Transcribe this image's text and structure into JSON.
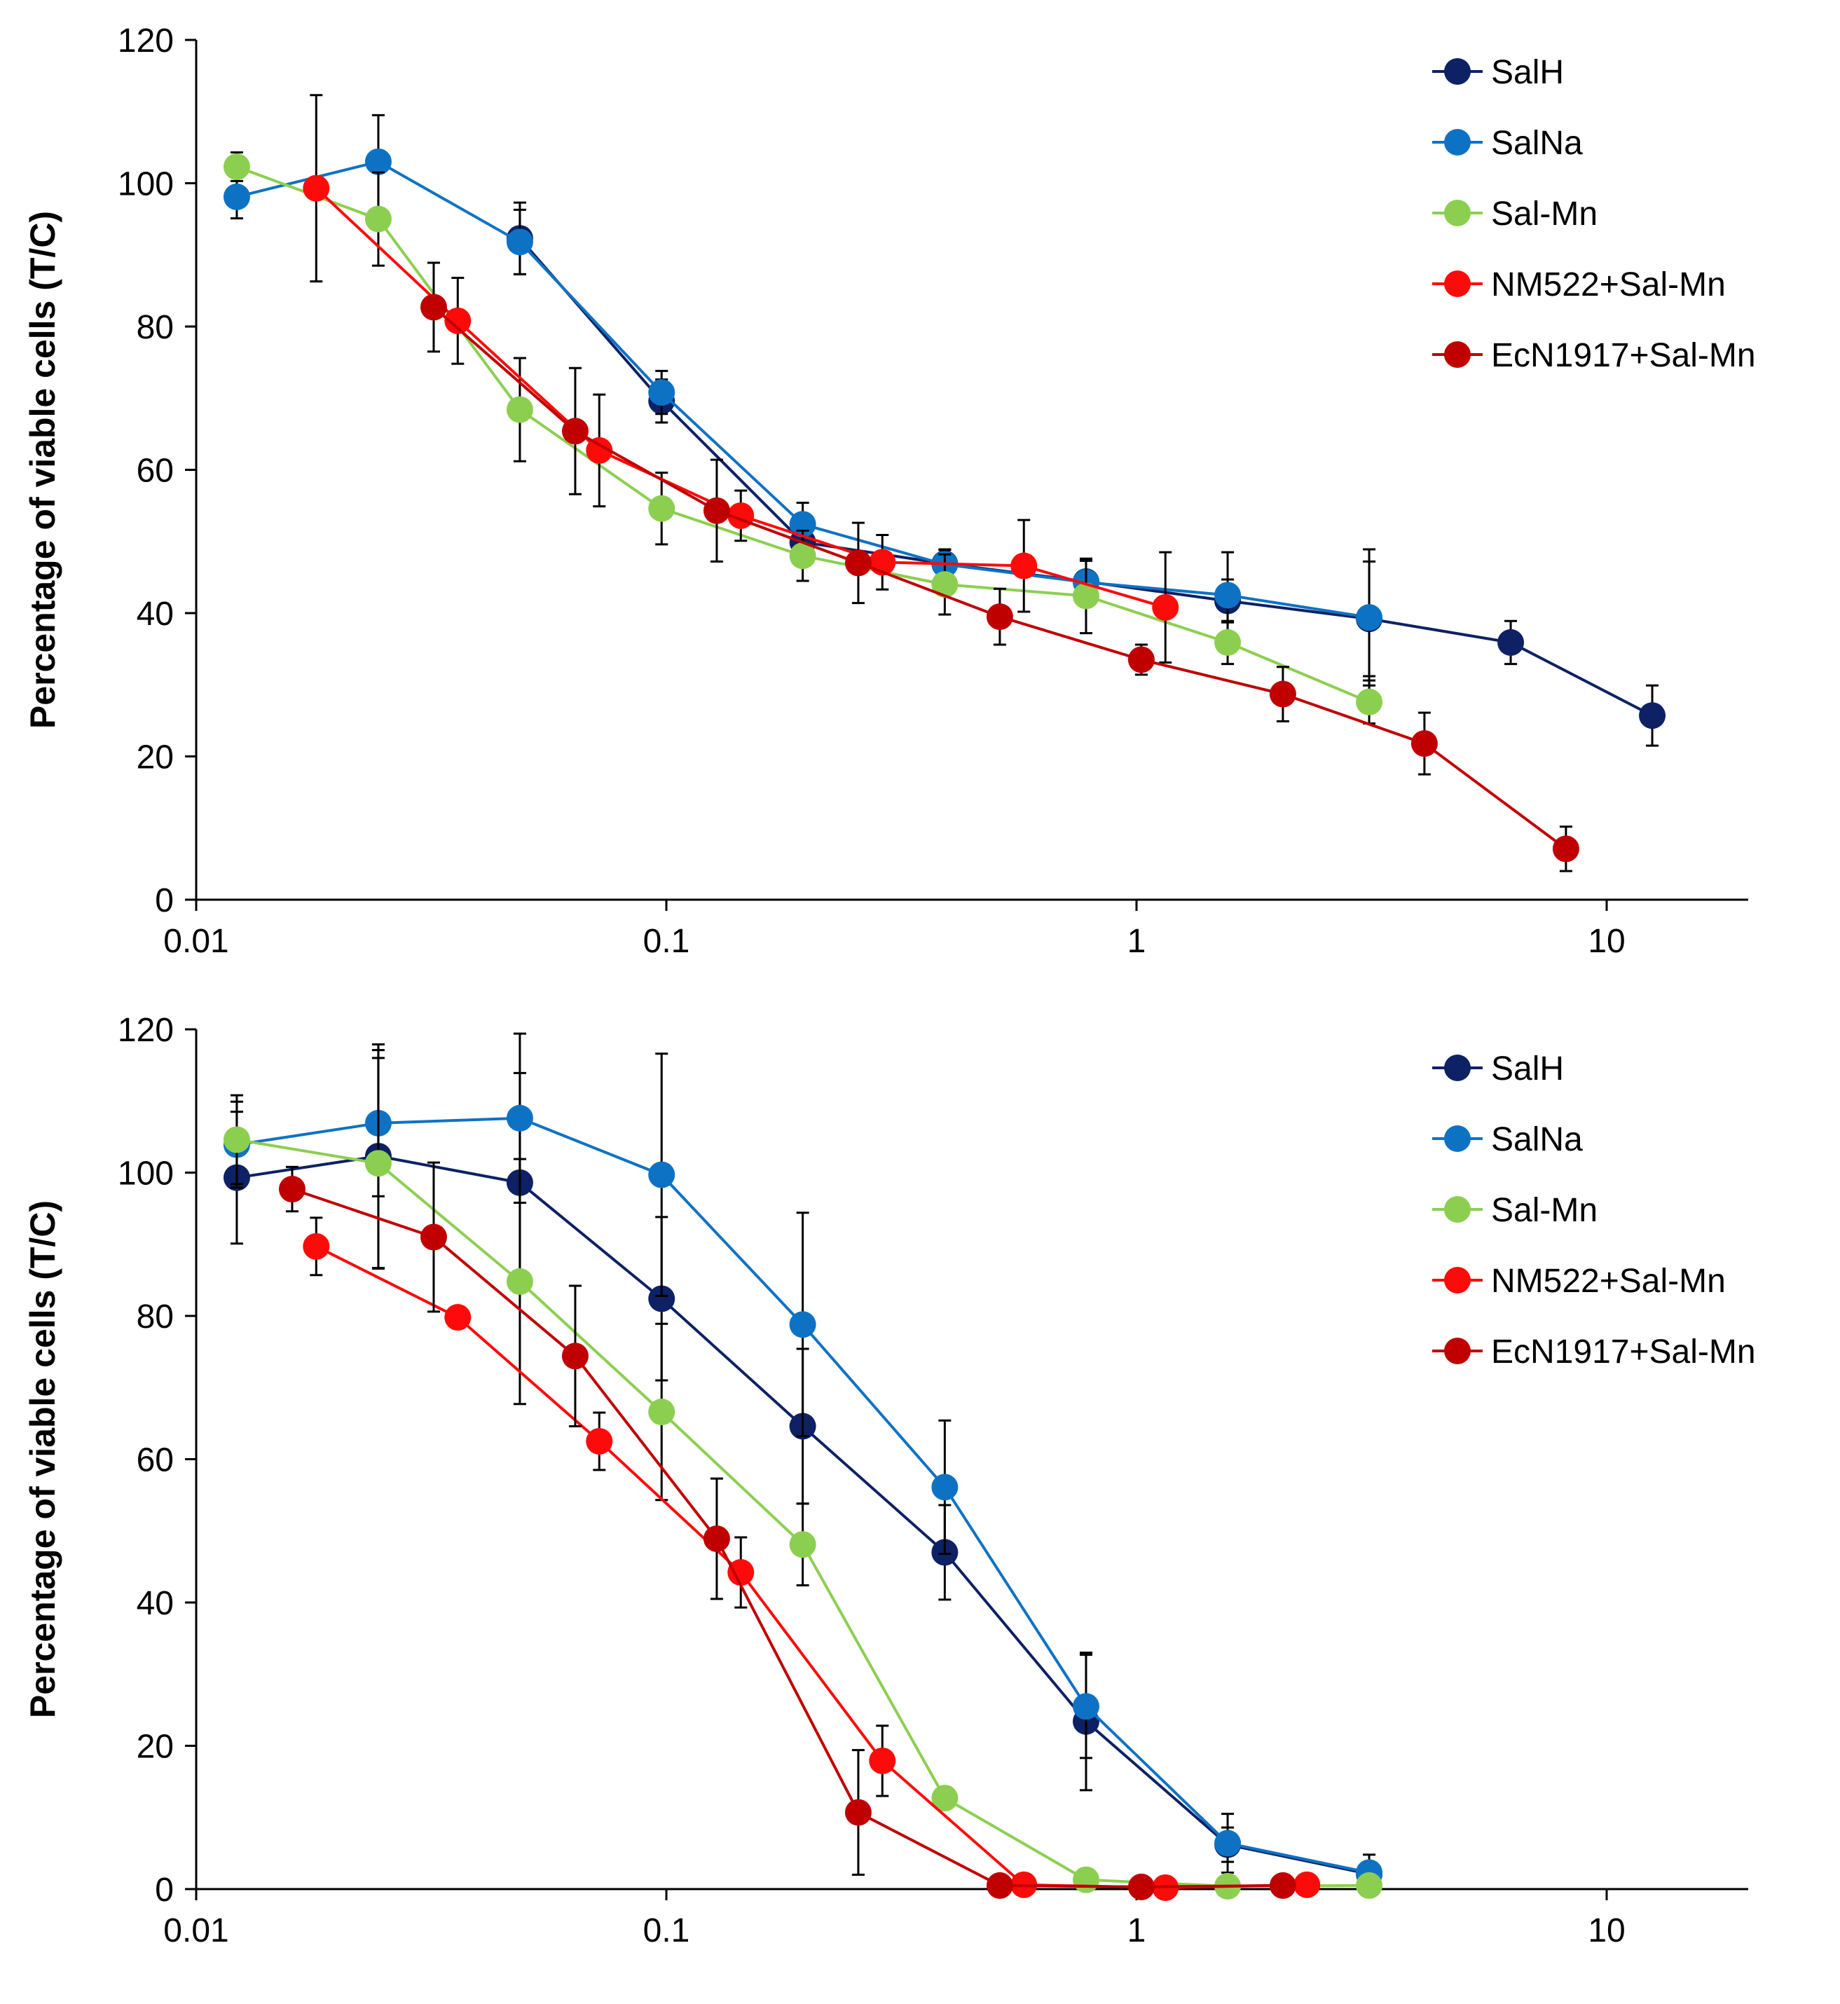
{
  "chart_data": [
    {
      "type": "scatter",
      "xscale": "log",
      "title": "",
      "xlabel": "",
      "ylabel": "Percentage of viable cells (T/C)",
      "xlim": [
        0.01,
        20
      ],
      "ylim": [
        0,
        120
      ],
      "xticks": [
        0.01,
        0.1,
        1,
        10
      ],
      "xtick_labels": [
        "0.01",
        "0.1",
        "1",
        "10"
      ],
      "yticks": [
        0,
        20,
        40,
        60,
        80,
        100,
        120
      ],
      "ytick_labels": [
        "0",
        "20",
        "40",
        "60",
        "80",
        "100",
        "120"
      ],
      "grid": false,
      "legend_position": "top-right",
      "series": [
        {
          "name": "SalH",
          "color": "#0d2164",
          "x": [
            0.0488,
            0.0977,
            0.195,
            0.391,
            0.781,
            1.5625,
            3.125,
            6.25,
            12.5
          ],
          "y": [
            92.3,
            69.6,
            49.9,
            46.9,
            44.4,
            41.7,
            39.2,
            35.9,
            25.7
          ],
          "err": [
            5.0,
            3.0,
            2.0,
            2.0,
            3.0,
            3.0,
            8.0,
            3.0,
            4.2
          ]
        },
        {
          "name": "SalNa",
          "color": "#0e72c4",
          "x": [
            0.0122,
            0.0244,
            0.0488,
            0.0977,
            0.195,
            0.391,
            0.781,
            1.5625,
            3.125
          ],
          "y": [
            98.1,
            103.0,
            91.8,
            70.8,
            52.4,
            46.8,
            44.3,
            42.5,
            39.4
          ],
          "err": [
            3.0,
            6.5,
            4.5,
            3.0,
            3.0,
            2.0,
            3.0,
            6.0,
            9.5
          ]
        },
        {
          "name": "Sal-Mn",
          "color": "#8ccf50",
          "x": [
            0.0122,
            0.0244,
            0.0488,
            0.0977,
            0.195,
            0.391,
            0.781,
            1.5625,
            3.125
          ],
          "y": [
            102.3,
            95.0,
            68.4,
            54.6,
            48.0,
            44.0,
            42.4,
            35.9,
            27.6
          ],
          "err": [
            2.0,
            6.5,
            7.2,
            5.0,
            3.5,
            4.2,
            5.2,
            3.0,
            3.0
          ]
        },
        {
          "name": "NM522+Sal-Mn",
          "color": "#ff0a0a",
          "x": [
            0.018,
            0.036,
            0.072,
            0.144,
            0.288,
            0.576,
            1.152
          ],
          "y": [
            99.3,
            80.8,
            62.7,
            53.6,
            47.1,
            46.6,
            40.8
          ],
          "err": [
            13.0,
            6.0,
            7.8,
            3.5,
            3.8,
            6.4,
            7.7
          ]
        },
        {
          "name": "EcN1917+Sal-Mn",
          "color": "#c00000",
          "x": [
            0.032,
            0.064,
            0.128,
            0.256,
            0.512,
            1.024,
            2.048,
            4.096,
            8.192
          ],
          "y": [
            82.7,
            65.4,
            54.3,
            47.0,
            39.5,
            33.5,
            28.7,
            21.8,
            7.1
          ],
          "err": [
            6.2,
            8.8,
            7.1,
            5.6,
            3.9,
            2.1,
            3.8,
            4.3,
            3.1
          ]
        }
      ]
    },
    {
      "type": "scatter",
      "xscale": "log",
      "title": "",
      "xlabel": "",
      "ylabel": "Percentage of viable cells (T/C)",
      "xlim": [
        0.01,
        20
      ],
      "ylim": [
        0,
        120
      ],
      "xticks": [
        0.01,
        0.1,
        1,
        10
      ],
      "xtick_labels": [
        "0.01",
        "0.1",
        "1",
        "10"
      ],
      "yticks": [
        0,
        20,
        40,
        60,
        80,
        100,
        120
      ],
      "ytick_labels": [
        "0",
        "20",
        "40",
        "60",
        "80",
        "100",
        "120"
      ],
      "grid": false,
      "legend_position": "top-right",
      "series": [
        {
          "name": "SalH",
          "color": "#0d2164",
          "x": [
            0.0122,
            0.0244,
            0.0488,
            0.0977,
            0.195,
            0.391,
            0.781,
            1.5625,
            3.125
          ],
          "y": [
            99.3,
            102.3,
            98.6,
            82.4,
            64.6,
            47.0,
            23.4,
            6.2,
            2.1
          ],
          "err": [
            9.2,
            15.6,
            15.3,
            11.4,
            10.8,
            6.6,
            9.6,
            2.4,
            1.1
          ]
        },
        {
          "name": "SalNa",
          "color": "#0e72c4",
          "x": [
            0.0122,
            0.0244,
            0.0488,
            0.0977,
            0.195,
            0.391,
            0.781,
            1.5625,
            3.125
          ],
          "y": [
            103.9,
            106.9,
            107.6,
            99.7,
            78.8,
            56.1,
            25.5,
            6.4,
            2.3
          ],
          "err": [
            6.0,
            10.2,
            11.8,
            16.9,
            15.6,
            9.3,
            7.2,
            4.1,
            2.5
          ]
        },
        {
          "name": "Sal-Mn",
          "color": "#8ccf50",
          "x": [
            0.0122,
            0.0244,
            0.0488,
            0.0977,
            0.195,
            0.391,
            0.781,
            1.5625,
            3.125
          ],
          "y": [
            104.6,
            101.3,
            84.8,
            66.6,
            48.1,
            12.7,
            1.3,
            0.4,
            0.5
          ],
          "err": [
            6.2,
            14.7,
            17.1,
            12.3,
            5.7,
            1.5,
            0.6,
            0.3,
            0.3
          ]
        },
        {
          "name": "NM522+Sal-Mn",
          "color": "#ff0a0a",
          "x": [
            0.018,
            0.036,
            0.072,
            0.144,
            0.288,
            0.576,
            1.152,
            2.304
          ],
          "y": [
            89.7,
            79.8,
            62.5,
            44.2,
            17.9,
            0.6,
            0.2,
            0.6
          ],
          "err": [
            4.0,
            1.5,
            4.0,
            4.9,
            4.9,
            0.4,
            0.2,
            0.3
          ]
        },
        {
          "name": "EcN1917+Sal-Mn",
          "color": "#c00000",
          "x": [
            0.016,
            0.032,
            0.064,
            0.128,
            0.256,
            0.512,
            1.024,
            2.048
          ],
          "y": [
            97.7,
            91.0,
            74.4,
            48.9,
            10.7,
            0.5,
            0.3,
            0.5
          ],
          "err": [
            3.1,
            10.4,
            9.8,
            8.4,
            8.7,
            0.3,
            0.2,
            0.2
          ]
        }
      ]
    }
  ]
}
